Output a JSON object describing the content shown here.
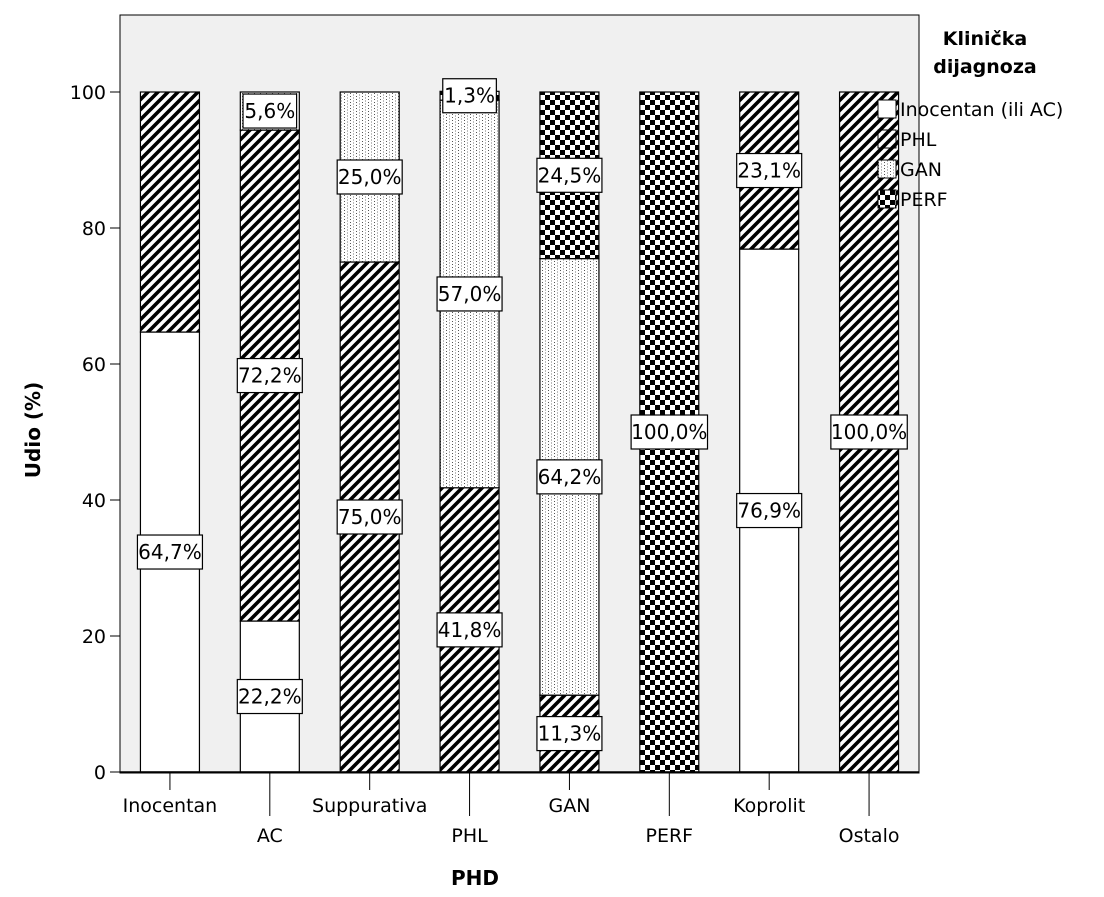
{
  "chart_data": {
    "type": "bar",
    "stacked": true,
    "percent": true,
    "xlabel": "PHD",
    "ylabel": "Udio (%)",
    "ylim": [
      0,
      110
    ],
    "yticks": [
      0,
      20,
      40,
      60,
      80,
      100
    ],
    "grid": false,
    "legend_title": "Klinička dijagnoza",
    "legend_position": "right",
    "categories": [
      "Inocentan",
      "AC",
      "Suppurativa",
      "PHL",
      "GAN",
      "PERF",
      "Koprolit",
      "Ostalo"
    ],
    "series": [
      {
        "name": "Inocentan (ili AC)",
        "pattern": "white",
        "values": [
          64.7,
          22.2,
          0,
          0,
          0,
          0,
          76.9,
          0
        ]
      },
      {
        "name": "PHL",
        "pattern": "diagonal-hatch",
        "values": [
          35.3,
          72.2,
          75.0,
          41.8,
          11.3,
          0,
          23.1,
          100.0
        ]
      },
      {
        "name": "GAN",
        "pattern": "dotted",
        "values": [
          0,
          5.6,
          25.0,
          57.0,
          64.2,
          0,
          0,
          0
        ]
      },
      {
        "name": "PERF",
        "pattern": "checker",
        "values": [
          0,
          0,
          0,
          1.3,
          24.5,
          100.0,
          0,
          0
        ]
      }
    ],
    "data_labels": [
      [
        "64,7%",
        "",
        "",
        ""
      ],
      [
        "22,2%",
        "72,2%",
        "5,6%",
        ""
      ],
      [
        "",
        "75,0%",
        "25,0%",
        ""
      ],
      [
        "",
        "41,8%",
        "57,0%",
        "1,3%"
      ],
      [
        "",
        "11,3%",
        "64,2%",
        "24,5%"
      ],
      [
        "",
        "",
        "",
        "100,0%"
      ],
      [
        "76,9%",
        "23,1%",
        "",
        ""
      ],
      [
        "",
        "100,0%",
        "",
        ""
      ]
    ],
    "colors": {
      "plot_background": "#f0f0f0",
      "bar_fill": "#ffffff",
      "ink": "#000000"
    }
  }
}
